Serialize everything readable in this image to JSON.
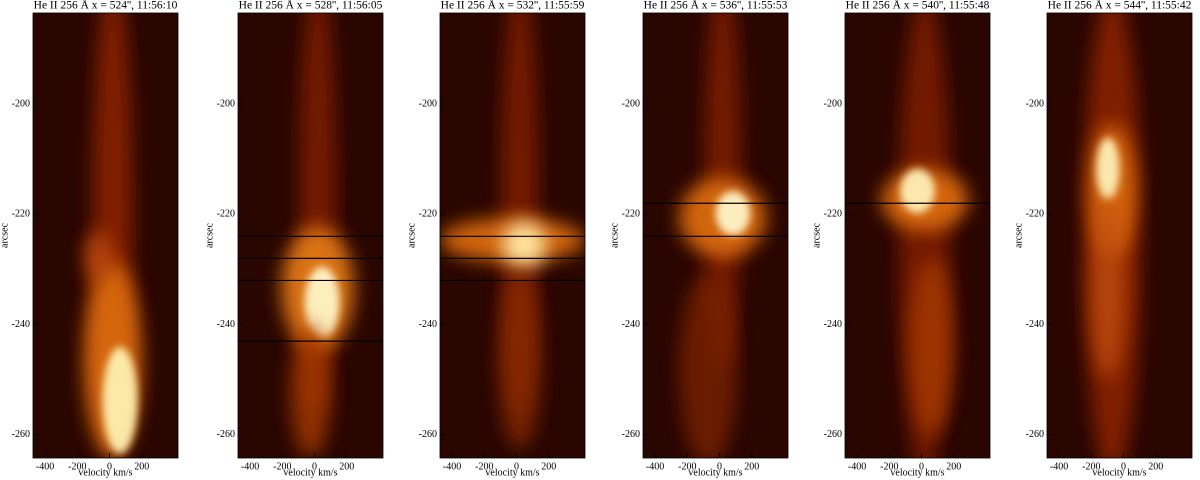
{
  "chart_data": [
    {
      "type": "heatmap",
      "title": "He II 256 Å  x = 524'', 11:56:10",
      "xlabel": "velocity km/s",
      "ylabel": "arcsec",
      "xlim": [
        -475,
        425
      ],
      "ylim": [
        -264.2,
        -183.5
      ],
      "xticks": [
        -400,
        -200,
        0,
        200
      ],
      "yticks": [
        -260,
        -240,
        -220,
        -200
      ],
      "hlines": []
    },
    {
      "type": "heatmap",
      "title": "He II 256 Å  x = 528'', 11:56:05",
      "xlabel": "velocity km/s",
      "ylabel": "arcsec",
      "xlim": [
        -475,
        425
      ],
      "ylim": [
        -264.2,
        -183.5
      ],
      "xticks": [
        -400,
        -200,
        0,
        200
      ],
      "yticks": [
        -260,
        -240,
        -220,
        -200
      ],
      "hlines": [
        -224,
        -228,
        -232,
        -243
      ]
    },
    {
      "type": "heatmap",
      "title": "He II 256 Å  x = 532'', 11:55:59",
      "xlabel": "velocity km/s",
      "ylabel": "arcsec",
      "xlim": [
        -475,
        425
      ],
      "ylim": [
        -264.2,
        -183.5
      ],
      "xticks": [
        -400,
        -200,
        0,
        200
      ],
      "yticks": [
        -260,
        -240,
        -220,
        -200
      ],
      "hlines": [
        -224,
        -228,
        -232
      ]
    },
    {
      "type": "heatmap",
      "title": "He II 256 Å  x = 536'', 11:55:53",
      "xlabel": "velocity km/s",
      "ylabel": "arcsec",
      "xlim": [
        -475,
        425
      ],
      "ylim": [
        -264.2,
        -183.5
      ],
      "xticks": [
        -400,
        -200,
        0,
        200
      ],
      "yticks": [
        -260,
        -240,
        -220,
        -200
      ],
      "hlines": [
        -218,
        -224
      ]
    },
    {
      "type": "heatmap",
      "title": "He II 256 Å  x = 540'', 11:55:48",
      "xlabel": "velocity km/s",
      "ylabel": "arcsec",
      "xlim": [
        -475,
        425
      ],
      "ylim": [
        -264.2,
        -183.5
      ],
      "xticks": [
        -400,
        -200,
        0,
        200
      ],
      "yticks": [
        -260,
        -240,
        -220,
        -200
      ],
      "hlines": [
        -218
      ]
    },
    {
      "type": "heatmap",
      "title": "He II 256 Å  x = 544'', 11:55:42",
      "xlabel": "velocity km/s",
      "ylabel": "arcsec",
      "xlim": [
        -475,
        425
      ],
      "ylim": [
        -264.2,
        -183.5
      ],
      "xticks": [
        -400,
        -200,
        0,
        200
      ],
      "yticks": [
        -260,
        -240,
        -220,
        -200
      ],
      "hlines": []
    }
  ]
}
